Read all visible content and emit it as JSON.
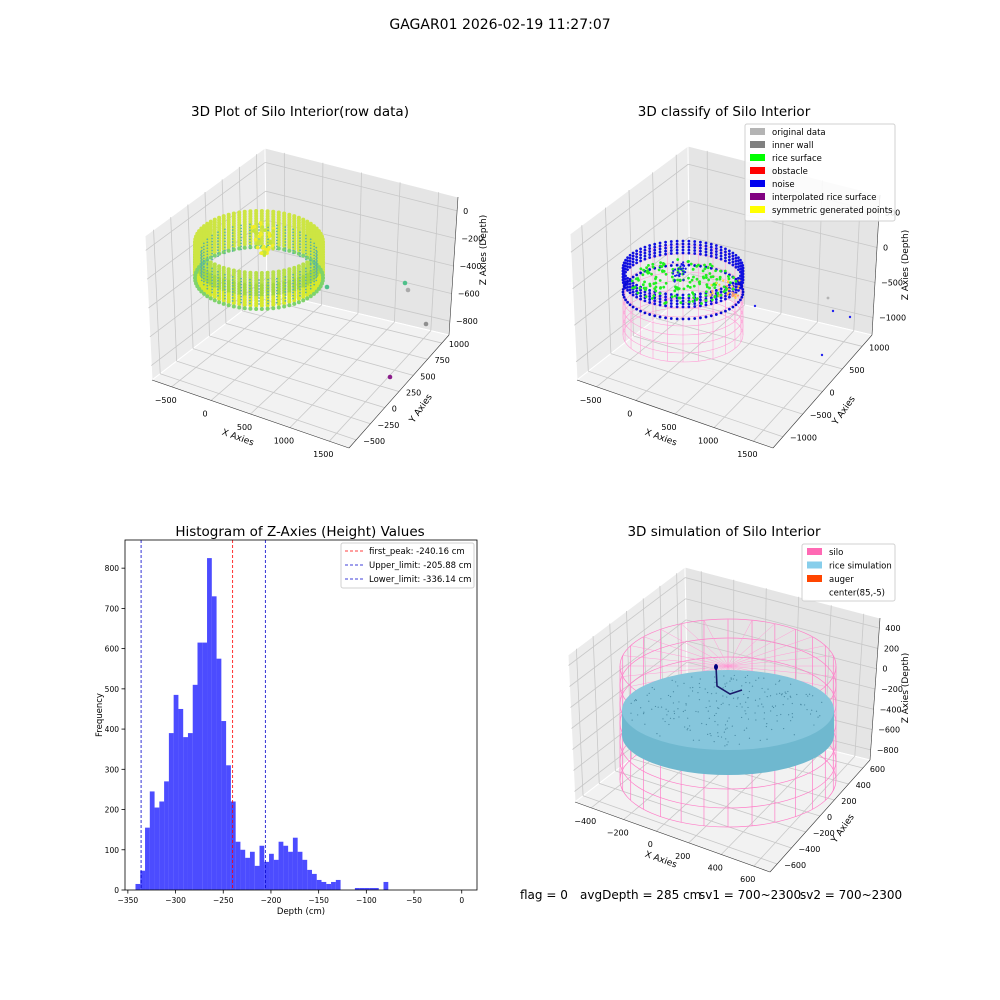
{
  "figure": {
    "suptitle": "GAGAR01 2026-02-19 11:27:07"
  },
  "panels": {
    "raw": {
      "title": "3D Plot of Silo Interior(row data)",
      "x_label": "X Axies",
      "y_label": "Y Axies",
      "z_label": "Z Axies (Depth)",
      "x_ticks": [
        "−500",
        "0",
        "500",
        "1000",
        "1500"
      ],
      "y_ticks": [
        "−500",
        "−250",
        "0",
        "250",
        "500",
        "750",
        "1000"
      ],
      "z_ticks": [
        "0",
        "−200",
        "−400",
        "−600",
        "−800"
      ]
    },
    "classify": {
      "title": "3D classify of Silo Interior",
      "x_label": "X Axies",
      "y_label": "Y Axies",
      "z_label": "Z Axies (Depth)",
      "x_ticks": [
        "−500",
        "0",
        "500",
        "1000",
        "1500"
      ],
      "y_ticks": [
        "−1000",
        "−500",
        "0",
        "500",
        "1000"
      ],
      "z_ticks": [
        "500",
        "0",
        "−500",
        "−1000"
      ],
      "legend": [
        {
          "label": "original data",
          "color": "#b4b4b4"
        },
        {
          "label": "inner wall",
          "color": "#808080"
        },
        {
          "label": "rice surface",
          "color": "#00ff00"
        },
        {
          "label": "obstacle",
          "color": "#ff0000"
        },
        {
          "label": "noise",
          "color": "#0000ee"
        },
        {
          "label": "interpolated rice surface",
          "color": "#800080"
        },
        {
          "label": "symmetric generated points",
          "color": "#ffff00"
        }
      ]
    },
    "simulation": {
      "title": "3D simulation of Silo Interior",
      "x_label": "X Axies",
      "y_label": "Y Axies",
      "z_label": "Z Axies (Depth)",
      "x_ticks": [
        "−400",
        "−200",
        "0",
        "200",
        "400",
        "600"
      ],
      "y_ticks": [
        "−600",
        "−400",
        "−200",
        "0",
        "200",
        "400",
        "600"
      ],
      "z_ticks": [
        "400",
        "200",
        "0",
        "−200",
        "−400",
        "−600",
        "−800"
      ],
      "legend": [
        {
          "label": "silo",
          "color": "#ff69b4"
        },
        {
          "label": "rice simulation",
          "color": "#87ceeb"
        },
        {
          "label": "auger",
          "color": "#ff4500"
        },
        {
          "label": "center(85,-5)",
          "color": ""
        }
      ]
    }
  },
  "footer": {
    "flag": "flag = 0",
    "avg": "avgDepth = 285 cm",
    "sv1": "sv1 = 700~2300",
    "sv2": "sv2 = 700~2300"
  },
  "chart_data": [
    {
      "type": "bar",
      "title": "Histogram of Z-Axies (Height) Values",
      "xlabel": "Depth (cm)",
      "ylabel": "Frequency",
      "xlim": [
        -353,
        16
      ],
      "ylim": [
        0,
        870
      ],
      "x_ticks": [
        -350,
        -300,
        -250,
        -200,
        -150,
        -100,
        -50,
        0
      ],
      "x_tick_labels": [
        "−350",
        "−300",
        "−250",
        "−200",
        "−150",
        "−100",
        "−50",
        "0"
      ],
      "y_ticks": [
        0,
        100,
        200,
        300,
        400,
        500,
        600,
        700,
        800
      ],
      "bar_color": "#0000ff",
      "bin_width": 5,
      "bins_left": [
        -342,
        -337,
        -332,
        -327,
        -322,
        -317,
        -312,
        -307,
        -302,
        -297,
        -292,
        -287,
        -282,
        -277,
        -272,
        -267,
        -262,
        -257,
        -252,
        -247,
        -242,
        -237,
        -232,
        -227,
        -222,
        -217,
        -212,
        -207,
        -202,
        -197,
        -192,
        -187,
        -182,
        -177,
        -172,
        -167,
        -162,
        -157,
        -152,
        -147,
        -142,
        -137,
        -132,
        -127,
        -122,
        -117,
        -112,
        -107,
        -102,
        -97,
        -92,
        -87,
        -82,
        -77,
        -72,
        -67,
        -62,
        -57,
        -52,
        -47,
        -42,
        -37,
        -32,
        -27,
        -22,
        -17,
        -12,
        -7,
        -2
      ],
      "counts": [
        15,
        48,
        155,
        245,
        205,
        220,
        270,
        390,
        485,
        450,
        380,
        390,
        510,
        615,
        615,
        825,
        730,
        575,
        420,
        310,
        220,
        120,
        100,
        80,
        95,
        60,
        110,
        70,
        90,
        75,
        120,
        110,
        95,
        130,
        95,
        75,
        50,
        40,
        25,
        20,
        15,
        20,
        25,
        0,
        0,
        0,
        5,
        5,
        5,
        5,
        5,
        0,
        20,
        0,
        0,
        0,
        0,
        0,
        0,
        0,
        0,
        0,
        0,
        0,
        0,
        0,
        0,
        0,
        0
      ],
      "vlines": [
        {
          "x": -240.16,
          "color": "#ff0000",
          "label": "first_peak: -240.16 cm"
        },
        {
          "x": -205.88,
          "color": "#0000cc",
          "label": "Upper_limit: -205.88 cm"
        },
        {
          "x": -336.14,
          "color": "#0000cc",
          "label": "Lower_limit: -336.14 cm"
        }
      ]
    }
  ]
}
